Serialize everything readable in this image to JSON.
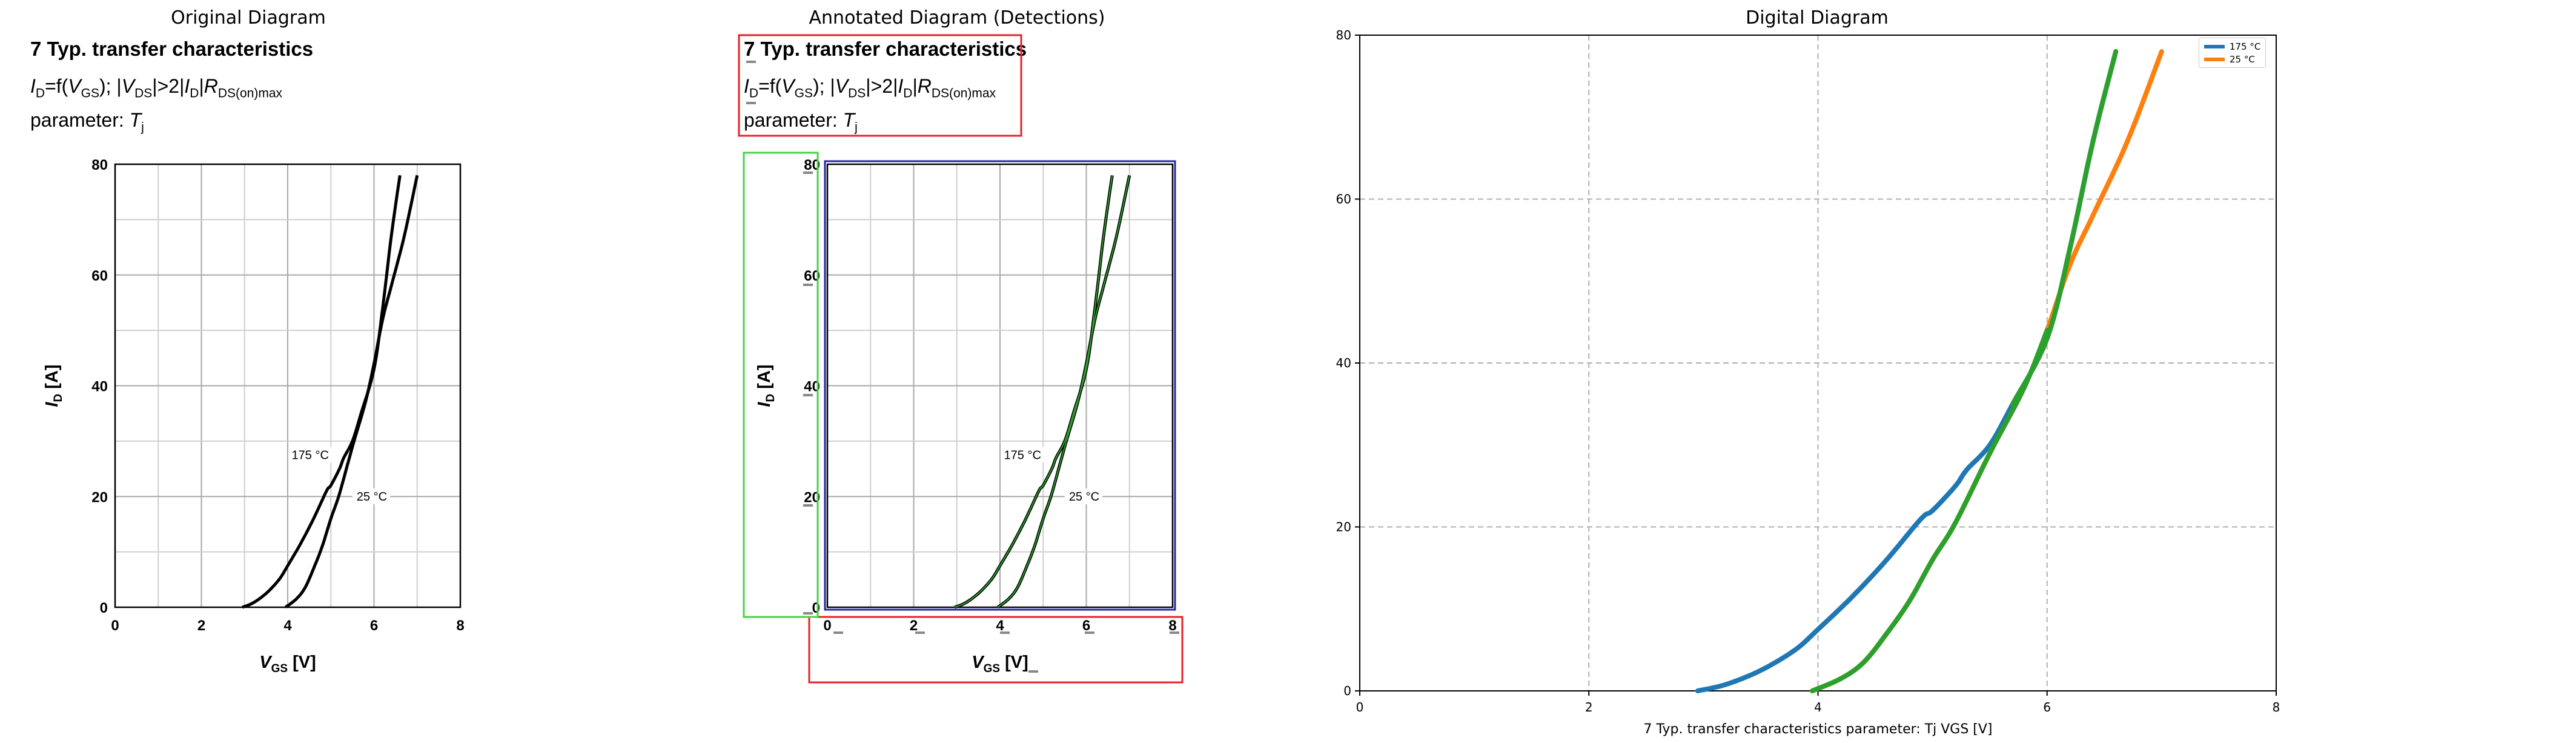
{
  "panels": {
    "original_title": "Original Diagram",
    "annotated_title": "Annotated Diagram (Detections)",
    "digital_title": "Digital Diagram"
  },
  "document": {
    "title": "7 Typ. transfer characteristics",
    "formula": {
      "i": "I",
      "d_sub": "D",
      "eq": "=f(",
      "v": "V",
      "gs_sub": "GS",
      "mid": "); |",
      "v2": "V",
      "ds_sub": "DS",
      "gt": "|>2|",
      "i2": "I",
      "d_sub2": "D",
      "bar": "|",
      "r": "R",
      "rds_sub": "DS(on)max"
    },
    "param_label": "parameter: ",
    "param_t": "T",
    "param_sub": "j"
  },
  "original_chart": {
    "y_label_main": "I",
    "y_label_sub": "D",
    "y_label_unit": " [A]",
    "x_label_main": "V",
    "x_label_sub": "GS",
    "x_label_unit": " [V]",
    "x_ticks": [
      "0",
      "2",
      "4",
      "6",
      "8"
    ],
    "y_ticks": [
      "0",
      "20",
      "40",
      "60",
      "80"
    ],
    "annotation_175": "175 °C",
    "annotation_25": "25 °C"
  },
  "digital_chart": {
    "legend": [
      "175 °C",
      "25 °C"
    ],
    "xlabel": "7 Typ. transfer characteristics parameter: Tj VGS [V]",
    "x_ticks": [
      "0",
      "2",
      "4",
      "6",
      "8"
    ],
    "y_ticks": [
      "0",
      "20",
      "40",
      "60",
      "80"
    ]
  },
  "colors": {
    "series_175": "#1f77b4",
    "series_25": "#ff7f0e",
    "overlay": "#2ca02c",
    "detect_red": "#e8202a",
    "detect_green": "#44d444",
    "detect_blue": "#2626a6"
  },
  "chart_data": {
    "type": "line",
    "title": "",
    "xlabel": "7 Typ. transfer characteristics parameter: Tj VGS [V]",
    "ylabel": "",
    "xlim": [
      0,
      8
    ],
    "ylim": [
      0,
      80
    ],
    "grid": true,
    "legend_position": "top-right",
    "series": [
      {
        "name": "175 °C",
        "x": [
          2.95,
          3.2,
          3.5,
          3.8,
          4.0,
          4.3,
          4.6,
          4.9,
          5.0,
          5.2,
          5.3,
          5.5,
          5.7,
          6.0,
          6.2,
          6.4,
          6.6
        ],
        "y": [
          0,
          0.8,
          2.5,
          5,
          7.5,
          11.5,
          16,
          21,
          22,
          25,
          27,
          30,
          35,
          43,
          54,
          67,
          78
        ]
      },
      {
        "name": "25 °C",
        "x": [
          3.95,
          4.2,
          4.4,
          4.6,
          4.8,
          5.0,
          5.2,
          5.5,
          5.8,
          6.0,
          6.2,
          6.4,
          6.7,
          7.0
        ],
        "y": [
          0,
          1.5,
          3.5,
          7,
          11,
          16,
          20.5,
          29,
          37,
          44,
          52,
          58,
          67,
          78
        ]
      }
    ]
  }
}
